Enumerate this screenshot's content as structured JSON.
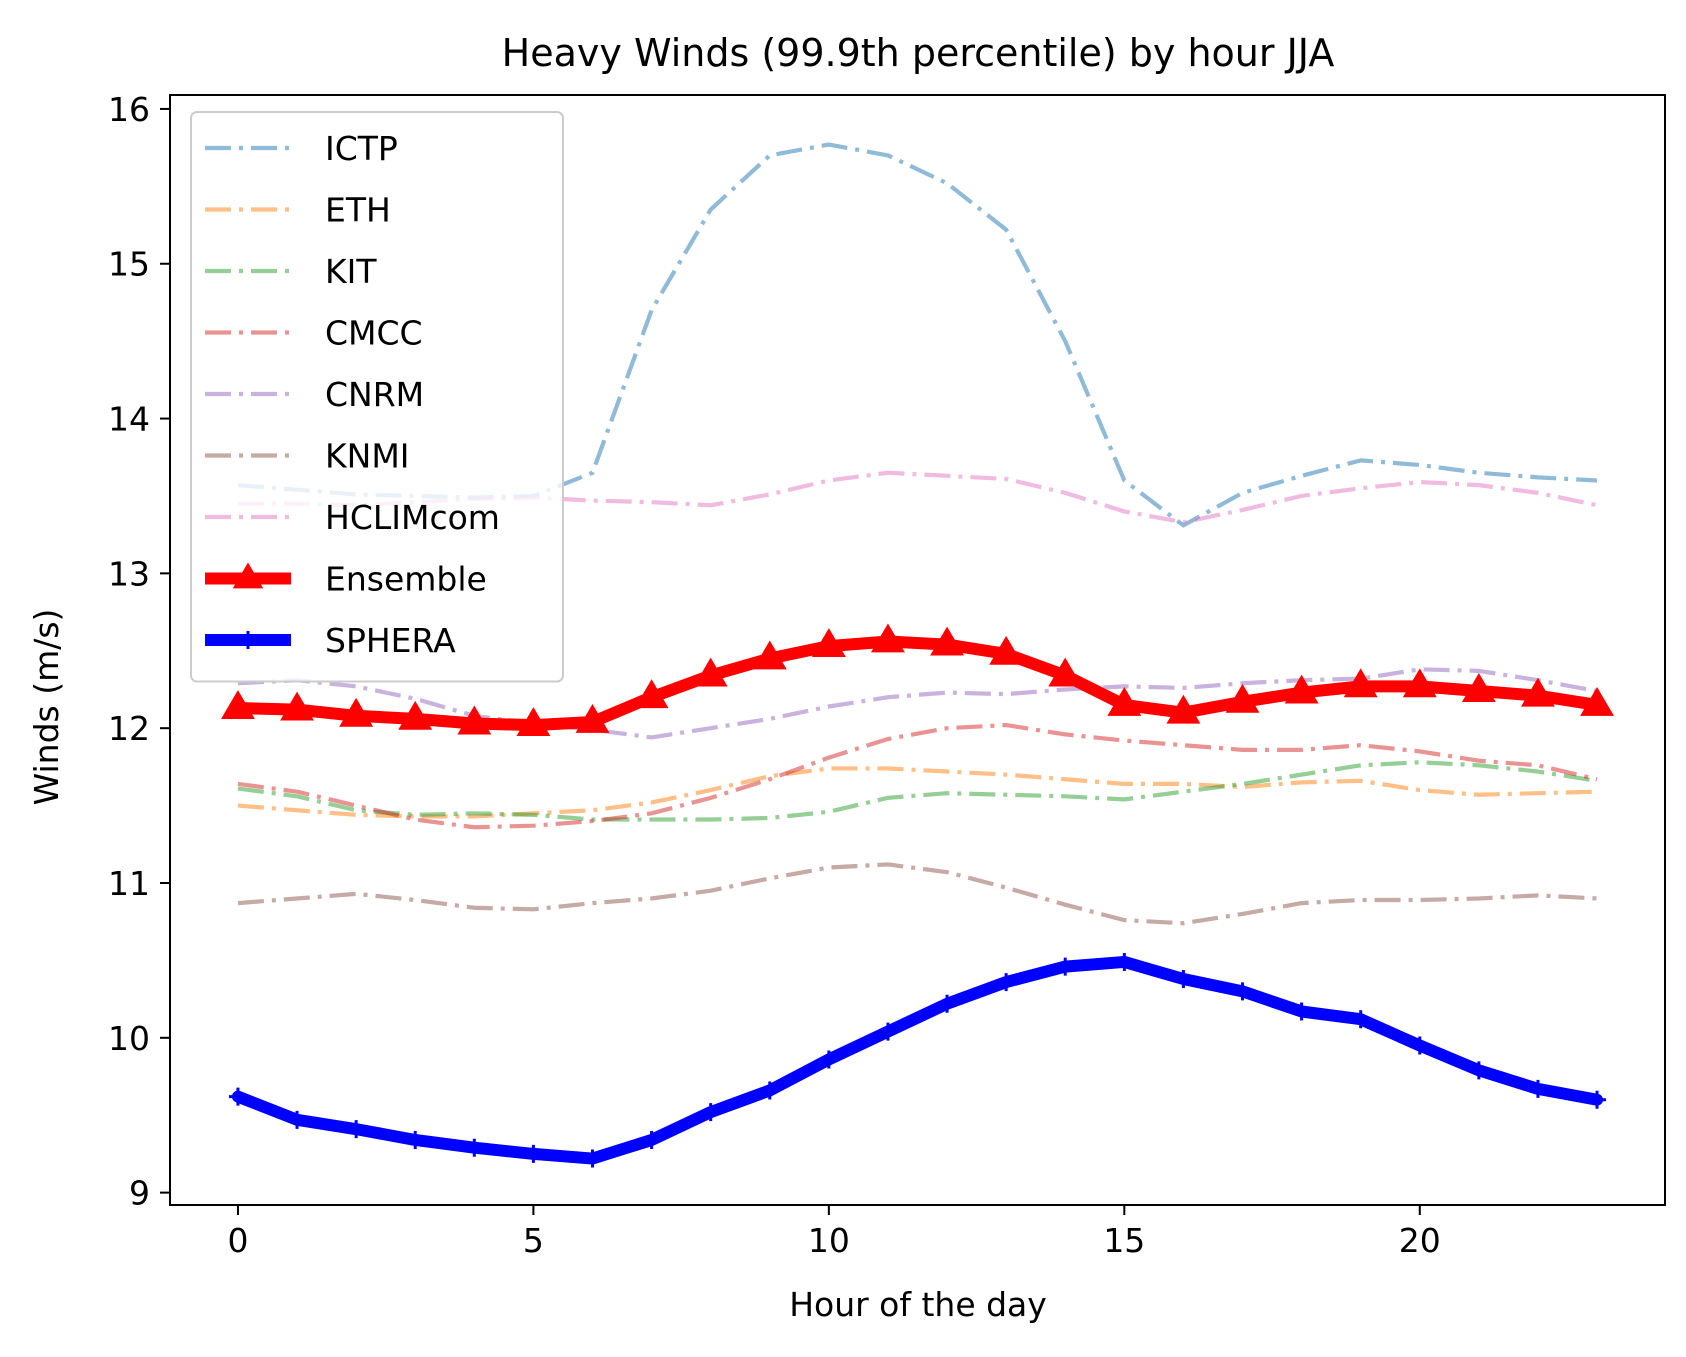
{
  "chart_data": {
    "type": "line",
    "title": "Heavy Winds (99.9th percentile) by hour JJA",
    "xlabel": "Hour of the day",
    "ylabel": "Winds (m/s)",
    "xlim": [
      -1.15,
      24.15
    ],
    "ylim": [
      8.92,
      16.09
    ],
    "xticks": [
      0,
      5,
      10,
      15,
      20
    ],
    "yticks": [
      9,
      10,
      11,
      12,
      13,
      14,
      15,
      16
    ],
    "grid": false,
    "legend": "upper-left",
    "x": [
      0,
      1,
      2,
      3,
      4,
      5,
      6,
      7,
      8,
      9,
      10,
      11,
      12,
      13,
      14,
      15,
      16,
      17,
      18,
      19,
      20,
      21,
      22,
      23
    ],
    "series": [
      {
        "name": "ICTP",
        "color": "#1f77b4",
        "style": "dashdot",
        "alpha": 0.5,
        "values": [
          13.57,
          13.54,
          13.51,
          13.5,
          13.49,
          13.5,
          13.65,
          14.7,
          15.35,
          15.7,
          15.77,
          15.7,
          15.52,
          15.22,
          14.5,
          13.6,
          13.31,
          13.52,
          13.63,
          13.73,
          13.7,
          13.65,
          13.62,
          13.6
        ]
      },
      {
        "name": "ETH",
        "color": "#ff7f0e",
        "style": "dashdot",
        "alpha": 0.5,
        "values": [
          11.5,
          11.47,
          11.44,
          11.43,
          11.43,
          11.45,
          11.47,
          11.52,
          11.6,
          11.69,
          11.74,
          11.74,
          11.72,
          11.7,
          11.67,
          11.64,
          11.64,
          11.62,
          11.65,
          11.66,
          11.6,
          11.57,
          11.58,
          11.59
        ]
      },
      {
        "name": "KIT",
        "color": "#2ca02c",
        "style": "dashdot",
        "alpha": 0.5,
        "values": [
          11.61,
          11.56,
          11.47,
          11.44,
          11.45,
          11.44,
          11.41,
          11.41,
          11.41,
          11.42,
          11.46,
          11.55,
          11.58,
          11.57,
          11.56,
          11.54,
          11.59,
          11.64,
          11.7,
          11.76,
          11.78,
          11.76,
          11.72,
          11.66
        ]
      },
      {
        "name": "CMCC",
        "color": "#d62728",
        "style": "dashdot",
        "alpha": 0.5,
        "values": [
          11.64,
          11.59,
          11.5,
          11.41,
          11.36,
          11.37,
          11.4,
          11.45,
          11.55,
          11.67,
          11.81,
          11.93,
          12.0,
          12.02,
          11.96,
          11.92,
          11.89,
          11.86,
          11.86,
          11.89,
          11.85,
          11.79,
          11.76,
          11.67
        ]
      },
      {
        "name": "CNRM",
        "color": "#9467bd",
        "style": "dashdot",
        "alpha": 0.5,
        "values": [
          12.29,
          12.31,
          12.27,
          12.19,
          12.08,
          12.03,
          11.99,
          11.94,
          12.0,
          12.06,
          12.14,
          12.2,
          12.23,
          12.22,
          12.25,
          12.27,
          12.26,
          12.29,
          12.31,
          12.32,
          12.38,
          12.37,
          12.31,
          12.24
        ]
      },
      {
        "name": "KNMI",
        "color": "#8c564b",
        "style": "dashdot",
        "alpha": 0.5,
        "values": [
          10.87,
          10.9,
          10.93,
          10.89,
          10.84,
          10.83,
          10.87,
          10.9,
          10.95,
          11.03,
          11.1,
          11.12,
          11.07,
          10.97,
          10.86,
          10.76,
          10.74,
          10.8,
          10.87,
          10.89,
          10.89,
          10.9,
          10.92,
          10.9
        ]
      },
      {
        "name": "HCLIMcom",
        "color": "#e377c2",
        "style": "dashdot",
        "alpha": 0.5,
        "values": [
          13.45,
          13.45,
          13.44,
          13.46,
          13.48,
          13.49,
          13.47,
          13.46,
          13.44,
          13.51,
          13.6,
          13.65,
          13.63,
          13.61,
          13.52,
          13.4,
          13.33,
          13.41,
          13.5,
          13.55,
          13.59,
          13.57,
          13.52,
          13.44
        ]
      },
      {
        "name": "Ensemble",
        "color": "#ff0000",
        "style": "solid",
        "alpha": 1.0,
        "marker": "triangle",
        "values": [
          12.13,
          12.12,
          12.08,
          12.06,
          12.03,
          12.02,
          12.04,
          12.2,
          12.34,
          12.45,
          12.53,
          12.56,
          12.54,
          12.48,
          12.34,
          12.15,
          12.1,
          12.17,
          12.23,
          12.27,
          12.27,
          12.24,
          12.21,
          12.15
        ]
      },
      {
        "name": "SPHERA",
        "color": "#0000ff",
        "style": "solid",
        "alpha": 1.0,
        "marker": "plus",
        "values": [
          9.62,
          9.47,
          9.41,
          9.34,
          9.29,
          9.25,
          9.22,
          9.34,
          9.52,
          9.66,
          9.86,
          10.04,
          10.22,
          10.36,
          10.46,
          10.49,
          10.38,
          10.3,
          10.17,
          10.12,
          9.95,
          9.79,
          9.67,
          9.6
        ]
      }
    ]
  }
}
